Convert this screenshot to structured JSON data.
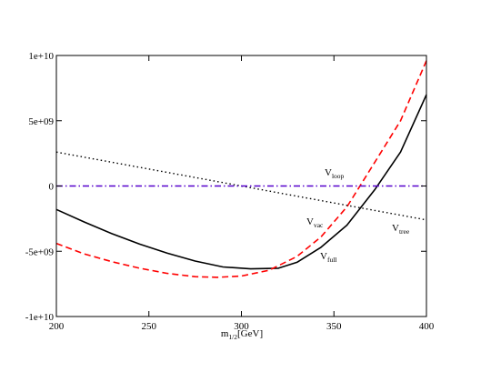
{
  "chart_data": {
    "type": "line",
    "xlim": [
      200,
      400
    ],
    "ylim": [
      -10000000000,
      10000000000
    ],
    "x_ticks": [
      200,
      250,
      300,
      350,
      400
    ],
    "x_tick_labels": [
      "200",
      "250",
      "300",
      "350",
      "400"
    ],
    "y_ticks": [
      10000000000,
      5000000000,
      0,
      -5000000000,
      -10000000000
    ],
    "y_tick_labels": [
      "1e+10",
      "5e+09",
      "0",
      "-5e+09",
      "-1e+10"
    ],
    "xlabel": {
      "main": "m",
      "sub": "1/2",
      "rest": "[GeV]"
    },
    "ylabel": "",
    "grid": false,
    "series": [
      {
        "label_main": "V",
        "label_sub": "full",
        "color": "#000000",
        "style": "solid",
        "x": [
          200,
          215,
          230,
          245,
          260,
          275,
          290,
          305,
          320,
          330,
          343,
          357,
          372,
          386,
          400
        ],
        "y": [
          -1800000000,
          -2750000000,
          -3650000000,
          -4450000000,
          -5150000000,
          -5750000000,
          -6200000000,
          -6350000000,
          -6300000000,
          -5850000000,
          -4700000000,
          -3000000000,
          -300000000,
          2600000000,
          7000000000
        ]
      },
      {
        "label_main": "V",
        "label_sub": "vac",
        "color": "#ff0000",
        "style": "dashed",
        "x": [
          200,
          215,
          230,
          245,
          260,
          275,
          287,
          300,
          315,
          330,
          343,
          357,
          372,
          386,
          400
        ],
        "y": [
          -4400000000,
          -5200000000,
          -5800000000,
          -6300000000,
          -6700000000,
          -6950000000,
          -7000000000,
          -6900000000,
          -6450000000,
          -5400000000,
          -3900000000,
          -1600000000,
          1800000000,
          5000000000,
          9600000000
        ]
      },
      {
        "label_main": "V",
        "label_sub": "tree",
        "color": "#000000",
        "style": "dotted",
        "x": [
          200,
          400
        ],
        "y": [
          2600000000,
          -2600000000
        ]
      },
      {
        "label_main": "V",
        "label_sub": "loop",
        "color": "#5500cc",
        "style": "dashdot",
        "x": [
          200,
          400
        ],
        "y": [
          0,
          0
        ]
      }
    ]
  }
}
